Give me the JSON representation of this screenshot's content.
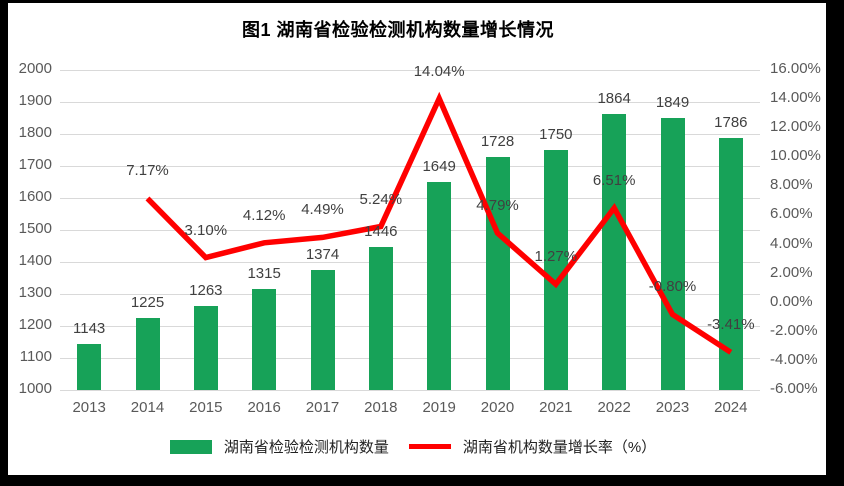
{
  "title": "图1 湖南省检验检测机构数量增长情况",
  "legend": {
    "items": [
      {
        "label": "湖南省检验检测机构数量",
        "marker": "bar-swatch",
        "color": "#17A258"
      },
      {
        "label": "湖南省机构数量增长率（%）",
        "marker": "line-swatch",
        "color": "#FF0000"
      }
    ],
    "position": "bottom"
  },
  "colors": {
    "bar": "#17A258",
    "line": "#FF0000",
    "gridline": "#D9D9D9",
    "axis_text": "#595959",
    "data_label_text": "#404040",
    "frame": "#000000",
    "chart_background": "#FFFFFF"
  },
  "chart_data": {
    "type": "bar+line",
    "title": "图1 湖南省检验检测机构数量增长情况",
    "categories": [
      "2013",
      "2014",
      "2015",
      "2016",
      "2017",
      "2018",
      "2019",
      "2020",
      "2021",
      "2022",
      "2023",
      "2024"
    ],
    "series": [
      {
        "name": "湖南省检验检测机构数量",
        "type": "bar",
        "axis": "left",
        "color": "#17A258",
        "values": [
          1143,
          1225,
          1263,
          1315,
          1374,
          1446,
          1649,
          1728,
          1750,
          1864,
          1849,
          1786
        ],
        "labels": [
          "1143",
          "1225",
          "1263",
          "1315",
          "1374",
          "1446",
          "1649",
          "1728",
          "1750",
          "1864",
          "1849",
          "1786"
        ]
      },
      {
        "name": "湖南省机构数量增长率（%）",
        "type": "line",
        "axis": "right",
        "color": "#FF0000",
        "values": [
          null,
          7.17,
          3.1,
          4.12,
          4.49,
          5.24,
          14.04,
          4.79,
          1.27,
          6.51,
          -0.8,
          -3.41
        ],
        "labels": [
          null,
          "7.17%",
          "3.10%",
          "4.12%",
          "4.49%",
          "5.24%",
          "14.04%",
          "4.79%",
          "1.27%",
          "6.51%",
          "-0.80%",
          "-3.41%"
        ]
      }
    ],
    "left_axis": {
      "min": 1000,
      "max": 2000,
      "step": 100,
      "tick_labels": [
        "2000",
        "1900",
        "1800",
        "1700",
        "1600",
        "1500",
        "1400",
        "1300",
        "1200",
        "1100",
        "1000"
      ]
    },
    "right_axis": {
      "min": -6,
      "max": 16,
      "step": 2,
      "tick_labels": [
        "16.00%",
        "14.00%",
        "12.00%",
        "10.00%",
        "8.00%",
        "6.00%",
        "4.00%",
        "2.00%",
        "0.00%",
        "-2.00%",
        "-4.00%",
        "-6.00%"
      ]
    },
    "grid": true,
    "legend_position": "bottom"
  }
}
